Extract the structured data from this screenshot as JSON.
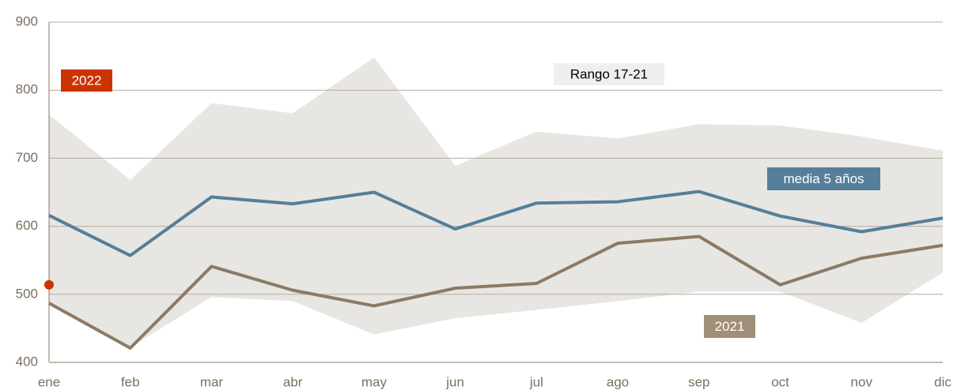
{
  "chart_data": {
    "type": "line",
    "categories": [
      "ene",
      "feb",
      "mar",
      "abr",
      "may",
      "jun",
      "jul",
      "ago",
      "sep",
      "oct",
      "nov",
      "dic"
    ],
    "band": {
      "name": "Rango 17-21",
      "color": "#e8e6e3",
      "upper": [
        764,
        668,
        781,
        766,
        848,
        689,
        739,
        729,
        750,
        748,
        732,
        711
      ],
      "lower": [
        487,
        422,
        496,
        490,
        441,
        465,
        477,
        490,
        504,
        504,
        458,
        532
      ]
    },
    "series": [
      {
        "name": "media 5 años",
        "color": "#557f99",
        "values": [
          616,
          557,
          643,
          633,
          650,
          596,
          634,
          636,
          651,
          615,
          592,
          612
        ]
      },
      {
        "name": "2021",
        "color": "#8c7a66",
        "values": [
          487,
          421,
          541,
          506,
          483,
          509,
          516,
          575,
          585,
          514,
          553,
          572
        ]
      },
      {
        "name": "2022",
        "color": "#cc3300",
        "values": [
          514,
          null,
          null,
          null,
          null,
          null,
          null,
          null,
          null,
          null,
          null,
          null
        ]
      }
    ],
    "ylim": [
      400,
      900
    ],
    "yticks": [
      400,
      500,
      600,
      700,
      800,
      900
    ],
    "grid": true
  }
}
